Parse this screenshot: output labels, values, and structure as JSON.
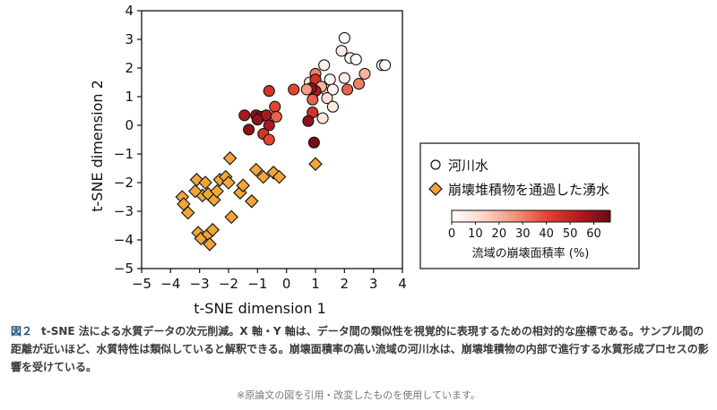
{
  "chart_data": {
    "type": "scatter",
    "xlabel": "t-SNE dimension 1",
    "ylabel": "t-SNE dimension 2",
    "xlim": [
      -5,
      4
    ],
    "ylim": [
      -5,
      4
    ],
    "xticks": [
      "−5",
      "−4",
      "−3",
      "−2",
      "−1",
      "0",
      "1",
      "2",
      "3",
      "4"
    ],
    "yticks": [
      "−5",
      "−4",
      "−3",
      "−2",
      "−1",
      "0",
      "1",
      "2",
      "3",
      "4"
    ],
    "colorbar": {
      "label": "流域の崩壊面積率 (%)",
      "range": [
        0,
        67
      ],
      "ticks": [
        "0",
        "10",
        "20",
        "30",
        "40",
        "50",
        "60"
      ],
      "colors": [
        "#ffffff",
        "#fcd5c5",
        "#f3937a",
        "#e3432f",
        "#b51a20",
        "#6b0a14"
      ]
    },
    "legend": {
      "position": "right",
      "entries": [
        {
          "label": "河川水",
          "marker": "circle"
        },
        {
          "label": "崩壊堆積物を通過した湧水",
          "marker": "diamond",
          "color": "#f2a53a"
        }
      ]
    },
    "series": [
      {
        "name": "河川水",
        "marker": "circle",
        "points": [
          [
            2.0,
            3.05,
            2
          ],
          [
            1.9,
            2.6,
            5
          ],
          [
            2.2,
            2.35,
            3
          ],
          [
            2.4,
            2.3,
            2
          ],
          [
            3.3,
            2.1,
            1
          ],
          [
            3.4,
            2.1,
            1
          ],
          [
            1.3,
            2.1,
            4
          ],
          [
            2.7,
            1.8,
            20
          ],
          [
            2.0,
            1.65,
            6
          ],
          [
            1.5,
            1.6,
            3
          ],
          [
            1.0,
            1.8,
            30
          ],
          [
            0.8,
            1.5,
            10
          ],
          [
            1.0,
            1.6,
            45
          ],
          [
            1.35,
            1.25,
            12
          ],
          [
            1.6,
            1.25,
            4
          ],
          [
            2.1,
            1.25,
            35
          ],
          [
            2.5,
            1.45,
            30
          ],
          [
            1.2,
            1.35,
            20
          ],
          [
            1.0,
            1.2,
            55
          ],
          [
            0.85,
            1.3,
            60
          ],
          [
            0.7,
            1.25,
            25
          ],
          [
            0.25,
            1.25,
            40
          ],
          [
            -0.6,
            1.2,
            45
          ],
          [
            1.4,
            0.95,
            10
          ],
          [
            1.6,
            0.65,
            6
          ],
          [
            0.9,
            0.9,
            35
          ],
          [
            -0.4,
            0.65,
            40
          ],
          [
            -1.45,
            0.35,
            55
          ],
          [
            -1.05,
            0.35,
            60
          ],
          [
            -0.9,
            0.3,
            62
          ],
          [
            -0.7,
            0.35,
            55
          ],
          [
            -0.35,
            0.3,
            35
          ],
          [
            -1.0,
            0.2,
            60
          ],
          [
            -0.6,
            0.0,
            55
          ],
          [
            -1.3,
            -0.15,
            60
          ],
          [
            -0.8,
            -0.3,
            45
          ],
          [
            -0.6,
            -0.5,
            40
          ],
          [
            1.25,
            0.25,
            8
          ],
          [
            0.9,
            0.45,
            45
          ],
          [
            0.75,
            0.15,
            60
          ],
          [
            0.95,
            -0.6,
            65
          ]
        ]
      },
      {
        "name": "崩壊堆積物を通過した湧水",
        "marker": "diamond",
        "points": [
          [
            -3.6,
            -2.5
          ],
          [
            -3.55,
            -2.75
          ],
          [
            -3.4,
            -3.05
          ],
          [
            -3.1,
            -1.9
          ],
          [
            -2.8,
            -2.0
          ],
          [
            -2.9,
            -2.45
          ],
          [
            -3.15,
            -2.3
          ],
          [
            -2.7,
            -2.4
          ],
          [
            -2.5,
            -2.6
          ],
          [
            -2.3,
            -1.9
          ],
          [
            -2.4,
            -2.3
          ],
          [
            -2.1,
            -1.8
          ],
          [
            -2.0,
            -2.0
          ],
          [
            -1.95,
            -1.15
          ],
          [
            -1.6,
            -2.35
          ],
          [
            -1.5,
            -2.1
          ],
          [
            -1.05,
            -1.55
          ],
          [
            -0.8,
            -1.8
          ],
          [
            -0.45,
            -1.65
          ],
          [
            -0.25,
            -1.8
          ],
          [
            -1.9,
            -3.2
          ],
          [
            -1.2,
            -2.65
          ],
          [
            -3.05,
            -3.75
          ],
          [
            -2.95,
            -3.95
          ],
          [
            -2.7,
            -3.8
          ],
          [
            -2.65,
            -4.15
          ],
          [
            -2.55,
            -3.65
          ],
          [
            1.0,
            -1.35
          ]
        ]
      }
    ]
  },
  "caption": {
    "figure_label": "図２",
    "text": "t-SNE 法による水質データの次元削減。X 軸・Y 軸は、データ間の類似性を視覚的に表現するための相対的な座標である。サンプル間の距離が近いほど、水質特性は類似していると解釈できる。崩壊面積率の高い流域の河川水は、崩壊堆積物の内部で進行する水質形成プロセスの影響を受けている。"
  },
  "note": "※原論文の図を引用・改変したものを使用しています。"
}
